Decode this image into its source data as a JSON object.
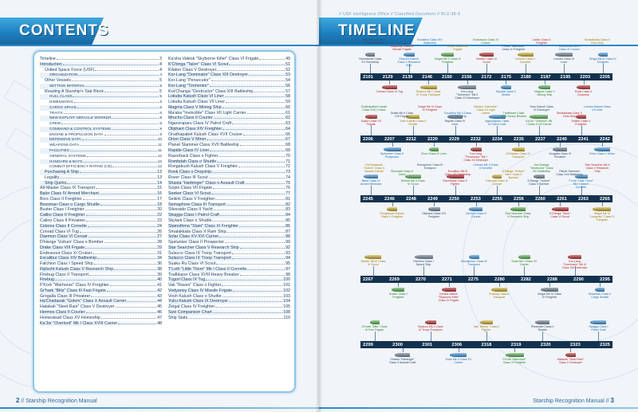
{
  "left_page": {
    "title": "CONTENTS",
    "page_number": "2",
    "footer_text": "// Starship Recognition Manual",
    "toc_left": [
      {
        "t": "Timeline",
        "p": "3",
        "lvl": 0
      },
      {
        "t": "Introduction",
        "p": "4",
        "lvl": 0
      },
      {
        "t": "United Space Force (USF)",
        "p": "4",
        "lvl": 1
      },
      {
        "t": "ORGANIZATION",
        "p": "4",
        "lvl": 2
      },
      {
        "t": "Other Vessels",
        "p": "5",
        "lvl": 1
      },
      {
        "t": "SETTING MATERIAL",
        "p": "5",
        "lvl": 2
      },
      {
        "t": "Reading A Starship's Stat Block",
        "p": "5",
        "lvl": 1
      },
      {
        "t": "HULL CLASS",
        "p": "5",
        "lvl": 2
      },
      {
        "t": "DIMENSIONS",
        "p": "6",
        "lvl": 2
      },
      {
        "t": "CARGO SPACE",
        "p": "6",
        "lvl": 2
      },
      {
        "t": "TRAITS",
        "p": "6",
        "lvl": 2
      },
      {
        "t": "NEW EXPLOIT: MIRACLE WORKER",
        "p": "8",
        "lvl": 2
      },
      {
        "t": "CREW",
        "p": "8",
        "lvl": 2
      },
      {
        "t": "COMMAND & CONTROL SYSTEMS",
        "p": "9",
        "lvl": 2
      },
      {
        "t": "ENGINE & PROPULSION DATA",
        "p": "9",
        "lvl": 2
      },
      {
        "t": "DEFENSIVE DATA",
        "p": "10",
        "lvl": 2
      },
      {
        "t": "WEAPONS DATA",
        "p": "11",
        "lvl": 2
      },
      {
        "t": "FACILITIES",
        "p": "11",
        "lvl": 2
      },
      {
        "t": "GENERAL SYSTEMS",
        "p": "12",
        "lvl": 2
      },
      {
        "t": "HANGARS & BAYS",
        "p": "12",
        "lvl": 2
      },
      {
        "t": "COMBAT EFFICIENCY RATING (CE)",
        "p": "12",
        "lvl": 2
      },
      {
        "t": "Purchasing A Ship",
        "p": "13",
        "lvl": 1
      },
      {
        "t": "Legality",
        "p": "13",
        "lvl": 1
      },
      {
        "t": "Ship Quirks",
        "p": "14",
        "lvl": 1
      },
      {
        "t": "AIl-Master Class IX Transport",
        "p": "15",
        "lvl": 0
      },
      {
        "t": "Balor Class IV Armed Merchant",
        "p": "16",
        "lvl": 0
      },
      {
        "t": "Bors Class II Freighter",
        "p": "17",
        "lvl": 0
      },
      {
        "t": "Bossman Class o Cargo Shuttle",
        "p": "18",
        "lvl": 0
      },
      {
        "t": "Buster Class I Freighter",
        "p": "20",
        "lvl": 0
      },
      {
        "t": "Caliko Class II Freighter",
        "p": "22",
        "lvl": 0
      },
      {
        "t": "Catino Class II Privateer",
        "p": "23",
        "lvl": 0
      },
      {
        "t": "Celeres Class II Corvette",
        "p": "24",
        "lvl": 0
      },
      {
        "t": "Conrad Class VI Tug",
        "p": "26",
        "lvl": 0
      },
      {
        "t": "Daemon Class VI Corsair",
        "p": "27",
        "lvl": 0
      },
      {
        "t": "D'Hange 'Vulture' Class o Bomber",
        "p": "28",
        "lvl": 0
      },
      {
        "t": "Drake Class VIII Frigate",
        "p": "29",
        "lvl": 0
      },
      {
        "t": "Endeavour Class XI Cruiser",
        "p": "31",
        "lvl": 0
      },
      {
        "t": "Excalibur Class XIV Battleship",
        "p": "34",
        "lvl": 0
      },
      {
        "t": "Falchion Class I Speed Ship",
        "p": "36",
        "lvl": 0
      },
      {
        "t": "Fiplucht Kalush Class V Research Ship",
        "p": "38",
        "lvl": 0
      },
      {
        "t": "Firebug Class II Transport",
        "p": "39",
        "lvl": 0
      },
      {
        "t": "Firebug",
        "p": "40",
        "lvl": 0
      },
      {
        "t": "F'Kork \"Warhorse\" Class IV Freighter",
        "p": "41",
        "lvl": 0
      },
      {
        "t": "Gr'hark \"Blitz\" Class III Fast Frigate",
        "p": "42",
        "lvl": 0
      },
      {
        "t": "Grogalla Class III Privateer",
        "p": "43",
        "lvl": 0
      },
      {
        "t": "Ha'Chadasak \"Golem\" Class X Assault Carrier",
        "p": "44",
        "lvl": 0
      },
      {
        "t": "Hatakah \"Steel Rain\" Class V Destroyer",
        "p": "45",
        "lvl": 0
      },
      {
        "t": "Hermes Class II Courier",
        "p": "46",
        "lvl": 0
      },
      {
        "t": "Homestead Class XV Homeship",
        "p": "47",
        "lvl": 0
      },
      {
        "t": "Ka'Jor \"Overlord\" Mk I Class XVIII Carrier",
        "p": "48",
        "lvl": 0
      }
    ],
    "toc_right": [
      {
        "t": "Ka'sha Vaktok \"Skyborne Killer\" Class VI Frigate",
        "p": "49"
      },
      {
        "t": "K'Chinga \"Talon\" Class VI Scout",
        "p": "51"
      },
      {
        "t": "Kilaton Class V Destroyer",
        "p": "52"
      },
      {
        "t": "Kor-Lang \"Dominator\" Class XIII Destroyer",
        "p": "53"
      },
      {
        "t": "Kor-Lang \"Persecutor\"",
        "p": "54"
      },
      {
        "t": "Kor-Lang \"Tormentor\"",
        "p": "56"
      },
      {
        "t": "Kra'Changa \"Destructor\" Class XIII Battleship",
        "p": "57"
      },
      {
        "t": "Lokubu Kalush Class VI Liner",
        "p": "58"
      },
      {
        "t": "Lokubu Kalush Class VII Liner",
        "p": "59"
      },
      {
        "t": "Magma Class V Mining Ship",
        "p": "60"
      },
      {
        "t": "Ma'aka \"Invincible\" Class XII Light Carrier",
        "p": "61"
      },
      {
        "t": "Mruchu Class II Courier",
        "p": "62"
      },
      {
        "t": "Ngaruraparu Class IV Patrol Craft",
        "p": "63"
      },
      {
        "t": "Oliphant Class XIV Freighter",
        "p": "64"
      },
      {
        "t": "Onathapabet Kalush Class XVII Cruiser",
        "p": "66"
      },
      {
        "t": "Orion Class V Miner",
        "p": "67"
      },
      {
        "t": "Planet Slammer Class XVII Battleship",
        "p": "68"
      },
      {
        "t": "Rapide Class IV Liner",
        "p": "69"
      },
      {
        "t": "Razorback Class o Fighter",
        "p": "70"
      },
      {
        "t": "Rombdah Class o Shuttle",
        "p": "71"
      },
      {
        "t": "Rongakush Kalush Class V Freighter",
        "p": "72"
      },
      {
        "t": "Rook Class o Dropship",
        "p": "73"
      },
      {
        "t": "Rover Class III Scout",
        "p": "74"
      },
      {
        "t": "Shasta \"Harbinger\" Class o Assault Craft",
        "p": "75"
      },
      {
        "t": "Scipio Class VII Frigate",
        "p": "76"
      },
      {
        "t": "Seeker Class VI Scout",
        "p": "77"
      },
      {
        "t": "Seikirk Class V Freighter",
        "p": "81"
      },
      {
        "t": "Semaphore Class III Transport",
        "p": "82"
      },
      {
        "t": "Silverado Class II Yacht",
        "p": "83"
      },
      {
        "t": "Skagga Class I Patrol Craft",
        "p": "84"
      },
      {
        "t": "Skylark Class o Shuttle",
        "p": "85"
      },
      {
        "t": "Slamothma \"Slam\" Class XI Freighter",
        "p": "86"
      },
      {
        "t": "Smatakkata Class X Ram Ship",
        "p": "87"
      },
      {
        "t": "Solar Class XV-XVI Carrier",
        "p": "88"
      },
      {
        "t": "Spelunker Class II Prospector",
        "p": "90"
      },
      {
        "t": "Star Searcher Class V Research Ship",
        "p": "92"
      },
      {
        "t": "Sulacco Class IX Troop Transport",
        "p": "93"
      },
      {
        "t": "Sulacco Class IX Troop Transport",
        "p": "94"
      },
      {
        "t": "Suaku Ru Class VI Scout",
        "p": "95"
      },
      {
        "t": "T'Loth \"Little Thorn\" Mk I Class II Corvette",
        "p": "97"
      },
      {
        "t": "Trailblazer Class XVIII Heavy Breaker",
        "p": "98"
      },
      {
        "t": "Tugori Class IX Tug",
        "p": "100"
      },
      {
        "t": "Vak \"Raven\" Class o Fighter",
        "p": "101"
      },
      {
        "t": "Vodyanoy Class IV Missile Frigate",
        "p": "102"
      },
      {
        "t": "Vosh Kalush Class o Shuttle",
        "p": "103"
      },
      {
        "t": "Yuku Kalush Class IX Destroyer",
        "p": "104"
      },
      {
        "t": "Zeigal Class IV Freighter",
        "p": "105"
      },
      {
        "t": "Size Comparison Chart",
        "p": "108"
      },
      {
        "t": "Ship Stats",
        "p": "110"
      }
    ]
  },
  "right_page": {
    "title": "TIMELINE",
    "classified": "// USF Intelligence Office // Classified Document // BLU-38-X",
    "page_number": "3",
    "footer_text": "Starship Recognition Manual //",
    "rows": [
      {
        "years": [
          "2101",
          "2129",
          "2139",
          "2146",
          "2150",
          "2156",
          "2172",
          "2175",
          "2180",
          "2187",
          "2195",
          "2203",
          "2205"
        ]
      },
      {
        "years": [
          "2206",
          "2207",
          "2212",
          "2220",
          "2229",
          "2232",
          "2234",
          "2235",
          "2237",
          "2240",
          "2241",
          "2242"
        ]
      },
      {
        "years": [
          "2245",
          "2246",
          "2248",
          "2249",
          "2250",
          "2253",
          "2255",
          "2256",
          "2260",
          "2261",
          "2263",
          "2265"
        ]
      },
      {
        "years": [
          "2267",
          "2269",
          "2270",
          "2271",
          "2275",
          "2280",
          "2282",
          "2288",
          "2290",
          "2295"
        ]
      },
      {
        "years": [
          "2299",
          "2300",
          "2301",
          "2306",
          "2318",
          "2319",
          "2320",
          "2323",
          "2325"
        ]
      }
    ],
    "ship_labels": [
      "Homestead Class XV Homeship",
      "Conrad Class VI Tug",
      "Fiplucht Kalush Class V Research Ship",
      "Sulacco Mk I Class IX Troop Transport",
      "Zeigal Mk II Class IX Freighter",
      "Kor-Lang \"Tormentor\" Mk II Class XII Destroyer",
      "Seeker Class VI Scout",
      "Skylark Class 0 Shuttle",
      "Celeres Class II Corvette",
      "Magma Class V Mining Ship",
      "Lokubu Class VI Liner",
      "Rook Class 0 Dropship",
      "Zeigal Mk III Class IV Freighter",
      "Scipio Class VII Frigate",
      "Spelunker Class II Prospector",
      "Vosh Kalush Class 0 Shuttle",
      "Rovo Class IV Liner",
      "Rapide Class IV Liner",
      "Kor-Lang \"Persecutor\" Mk I Class XII Destroyer",
      "Ngaruraparu Class IV Patrol Craft",
      "Oil Master Class IX Transport",
      "Ka'Jor \"Overlord\" Mk I Class XVIII Carrier",
      "Grogalla Class III Privateer",
      "Seikirk Class V Freighter",
      "Orion Class V Miner",
      "Balor Class IV Armed Merchant",
      "Rongakush Kalush Class V Freighter",
      "Seeker Mk II Class VI Scout",
      "Oliphant Class XIV Freighter",
      "Razorback Class 0 Fighter",
      "Hermes Class II Courier",
      "Daemon Class VI Corsair",
      "Star Searcher Class V Research Ship",
      "D'Hange \"Vulture\" Class 0 Bomber",
      "K'Chinga \"Talon\" Class VI Scout",
      "T'Loth \"Little Thorn\" Mk I Class II Corvette",
      "Zeigal Mk III \"Longhaul\" Class IV Freighter",
      "Seeker Mk III Class VI Scout",
      "Buster Class I Freighter",
      "Falchion Class I Speed Ship",
      "Ka'sha Vaktok \"Skyborne Killer\" Class VI Frigate",
      "Semaphore Class III Transport",
      "Firebug Class II Transport",
      "Solar Mk I Class XV Carrier",
      "Zeigal Mk IV Class IV Freighter",
      "Kor-Lang \"Dominator\" Mk III Class XIII Destroyer",
      "Bossman Class 0 Cargo Shuttle",
      "Gr'hark \"Blitz\" Class III Fast Frigate",
      "Shasta \"Harbinger\" Class 0 Assault Craft",
      "Sulacco Mk II Class IX Troop Transport",
      "Solar Mk II Class XV Carrier",
      "Vak \"Raven\" Class 0 Fighter",
      "F'Kork \"Warhorse\" Class IV Freighter",
      "Rombdah Class 0 Shuttle",
      "Hatakah \"Steel Rain\" Class V Destroyer",
      "Skagga Class I Patrol Craft",
      "Vak \"Raven\" Mk II Class 0 Fighter",
      "Vodyanoy Class IV Missile Frigate",
      "Excalibur Class XIV Battleship",
      "Drake Class VIII Frigate",
      "Endeavour Class XI Cruiser",
      "F'Kork \"Warhorse\" Class IV Freighter",
      "Caliko Class II Freighter",
      "Endeavour Mk II Class XI Cruiser",
      "Smatakkata Class X Ram Ship",
      "Onathapabet Kalush Class XVII Cruiser",
      "Drake Mk II Class VIII Frigate",
      "Zeigal Mk VI Class IV Freighter",
      "Excalibur Mk II Class XIV Battleship",
      "Ma'aka \"Invincible\" Class XII Light Carrier",
      "Trailblazer Class XVIII Heavy Breaker",
      "Yuku Kalush Class IX Destroyer",
      "Smatakkata Class X Ram Ship",
      "Lokubu Kalush Class VII Liner",
      "Ha'Chadasak \"Golem\" Class X Assault Carrier",
      "Silverado Class II Yacht",
      "Semaphore Class III Transport",
      "Excalibur Mk III Class XIV Battleship",
      "Celeres Mk II Class II Corvette",
      "D'Hange \"Vulture\" Mk II Class 0 Bomber",
      "Kra'Changa \"Destructor\" Class XIII Battleship",
      "Planet Slammer Class XVII Battleship",
      "Star Searcher Mk II Class V Research Ship"
    ]
  }
}
